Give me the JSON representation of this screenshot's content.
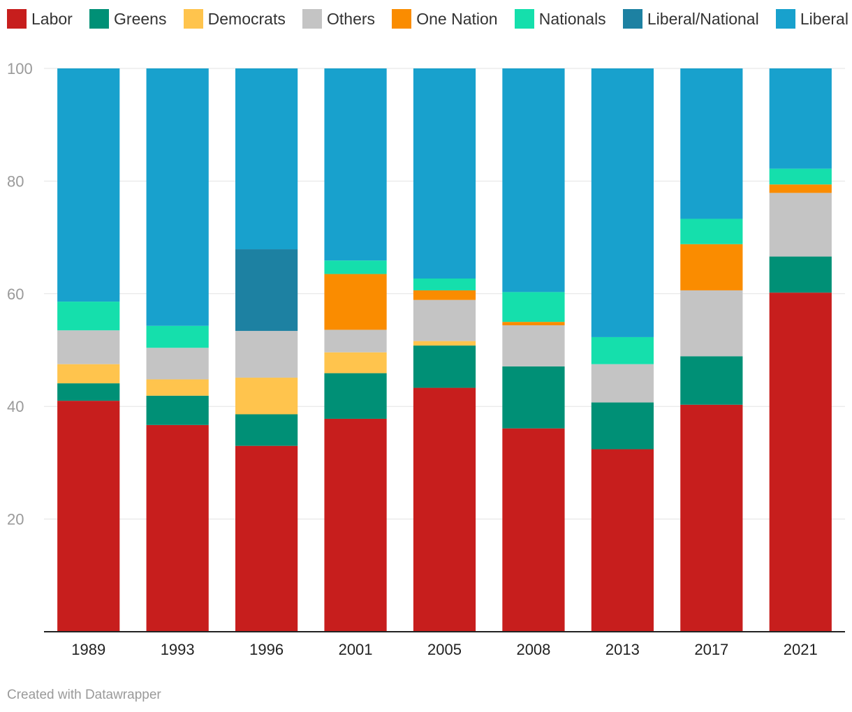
{
  "chart_data": {
    "type": "bar",
    "stacked": true,
    "categories": [
      "1989",
      "1993",
      "1996",
      "2001",
      "2005",
      "2008",
      "2013",
      "2017",
      "2021"
    ],
    "ylim": [
      0,
      100
    ],
    "yticks": [
      20,
      40,
      60,
      80,
      100
    ],
    "grid": true,
    "legend_position": "top",
    "series": [
      {
        "name": "Labor",
        "color": "#c71e1d",
        "values": [
          41,
          36.7,
          33,
          37.8,
          43.3,
          36.1,
          32.4,
          40.3,
          60.2
        ]
      },
      {
        "name": "Greens",
        "color": "#009076",
        "values": [
          3.1,
          5.2,
          5.6,
          8.1,
          7.5,
          11.0,
          8.3,
          8.6,
          6.4
        ]
      },
      {
        "name": "Democrats",
        "color": "#ffc44d",
        "values": [
          3.4,
          2.9,
          6.5,
          3.7,
          0.8,
          0,
          0,
          0,
          0
        ]
      },
      {
        "name": "Others",
        "color": "#c4c4c4",
        "values": [
          6.0,
          5.6,
          8.3,
          4.0,
          7.3,
          7.3,
          6.8,
          11.7,
          11.3
        ]
      },
      {
        "name": "One Nation",
        "color": "#fa8c00",
        "values": [
          0,
          0,
          0,
          9.9,
          1.7,
          0.6,
          0,
          8.2,
          1.5
        ]
      },
      {
        "name": "Nationals",
        "color": "#15dfac",
        "values": [
          5.1,
          3.9,
          0,
          2.4,
          2.1,
          5.3,
          4.8,
          4.5,
          2.8
        ]
      },
      {
        "name": "Liberal/National",
        "color": "#1d81a2",
        "values": [
          0,
          0,
          14.5,
          0,
          0,
          0,
          0,
          0,
          0
        ]
      },
      {
        "name": "Liberal",
        "color": "#18a1cd",
        "values": [
          41.4,
          45.7,
          32.1,
          34.1,
          37.3,
          39.7,
          47.7,
          26.7,
          17.8
        ]
      }
    ]
  },
  "footer": {
    "credit": "Created with Datawrapper"
  }
}
